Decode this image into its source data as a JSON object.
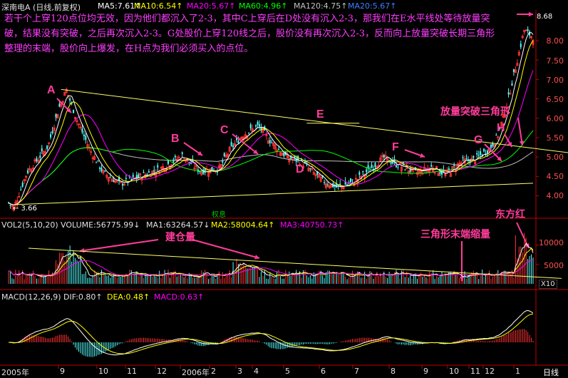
{
  "header": {
    "stock": "深南电A (日线,前复权)",
    "ma5": "MA5:7.61↑",
    "ma10": "MA10:6.54↑",
    "ma20": "MA20:5.67↑",
    "ma60": "MA60:4.96↑",
    "ma120": "MA120:4.75↑",
    "ma20b": "MA20:5.67↑"
  },
  "note": "若干个上穿120点位均无效，因为他们都沉入了2-3，其中C上穿后在D处没有沉入2-3，那我们在E水平线处等待放量突破，结果没有突破，之后再次沉入2-3。G处股价上穿120线之后，股价没有再次沉入2-3，反而向上放量突破长期三角形整理的末端，股价向上爆发，在H点为我们必须买入的点位。",
  "annotations": {
    "A": "A",
    "B": "B",
    "C": "C",
    "D": "D",
    "E": "E",
    "F": "F",
    "G": "G",
    "H": "H",
    "breakout": "放量突破三角形",
    "build": "建仓量",
    "shrink": "三角形末端缩量",
    "dfh": "东方红",
    "rights": "权息",
    "high_val": "8.68",
    "low_val": "← 3.66"
  },
  "vol_header": {
    "vol": "VOL2(5,10,20)",
    "volume": "VOLUME:56775.99↓",
    "ma1": "MA1:63264.57↓",
    "ma2": "MA2:58004.64↑",
    "ma3": "MA3:40750.73↑"
  },
  "macd_header": {
    "macd": "MACD(12,26,9)",
    "dif": "DIF:0.80↑",
    "dea": "DEA:0.48↑",
    "macdv": "MACD:0.63↑"
  },
  "y_ticks": [
    "8.00",
    "7.50",
    "7.00",
    "6.50",
    "6.00",
    "5.50",
    "5.00",
    "4.50",
    "4.00"
  ],
  "vol_ticks": [
    "10000",
    "5000"
  ],
  "vol_unit": "X10",
  "x_labels": [
    "2005年",
    "9",
    "10",
    "11",
    "12",
    "2006年",
    "2",
    "3",
    "4",
    "5",
    "6",
    "7",
    "8",
    "9",
    "10",
    "11",
    "12",
    "1"
  ],
  "period": "日线",
  "colors": {
    "up": "#ff3232",
    "down": "#54fcfc",
    "ma5": "#ffffff",
    "ma10": "#ffff00",
    "ma20": "#ff00ff",
    "ma60": "#00ff00",
    "ma120": "#c0c0c0",
    "trend": "#ffff66",
    "annot": "#ff3c9a"
  },
  "chart_data": [
    {
      "type": "candlestick",
      "title": "深南电A (日线,前复权)",
      "ylim": [
        3.5,
        8.9
      ],
      "key_points": [
        {
          "label": "low",
          "date": "2005-08",
          "price": 3.66
        },
        {
          "label": "A",
          "date": "2005-09",
          "price": 6.8
        },
        {
          "label": "B",
          "date": "2006-01",
          "price": 5.0
        },
        {
          "label": "C",
          "date": "2006-04",
          "price": 5.3
        },
        {
          "label": "D",
          "date": "2006-05",
          "price": 4.9
        },
        {
          "label": "E",
          "date": "2006-05",
          "price": 5.9
        },
        {
          "label": "F",
          "date": "2006-09",
          "price": 5.05
        },
        {
          "label": "G",
          "date": "2006-12",
          "price": 4.95
        },
        {
          "label": "H",
          "date": "2006-12",
          "price": 5.2
        },
        {
          "label": "high",
          "date": "2007-01",
          "price": 8.68
        }
      ],
      "ma": {
        "MA5": 7.61,
        "MA10": 6.54,
        "MA20": 5.67,
        "MA60": 4.96,
        "MA120": 4.75
      }
    },
    {
      "type": "bar",
      "title": "VOL2(5,10,20)",
      "values_summary": {
        "VOLUME": 56775.99,
        "MA1": 63264.57,
        "MA2": 58004.64,
        "MA3": 40750.73
      }
    },
    {
      "type": "bar",
      "title": "MACD(12,26,9)",
      "values_summary": {
        "DIF": 0.8,
        "DEA": 0.48,
        "MACD": 0.63
      }
    }
  ]
}
